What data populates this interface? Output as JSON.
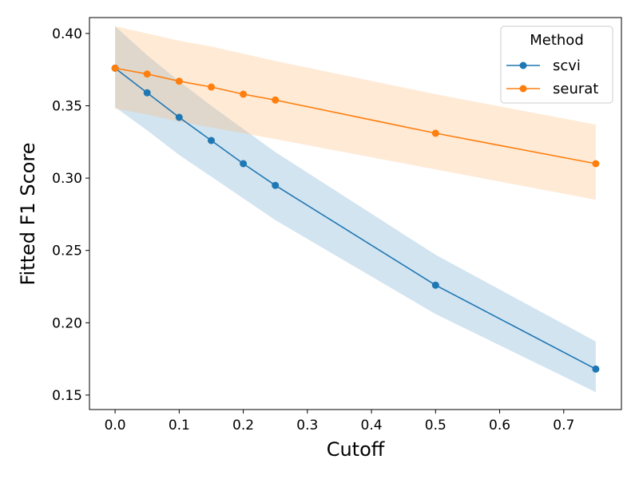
{
  "chart_data": {
    "type": "line",
    "xlabel": "Cutoff",
    "ylabel": "Fitted F1 Score",
    "xlim": [
      -0.04,
      0.79
    ],
    "ylim": [
      0.14,
      0.411
    ],
    "xticks": [
      0.0,
      0.1,
      0.2,
      0.3,
      0.4,
      0.5,
      0.6,
      0.7
    ],
    "xtick_labels": [
      "0.0",
      "0.1",
      "0.2",
      "0.3",
      "0.4",
      "0.5",
      "0.6",
      "0.7"
    ],
    "yticks": [
      0.15,
      0.2,
      0.25,
      0.3,
      0.35,
      0.4
    ],
    "ytick_labels": [
      "0.15",
      "0.20",
      "0.25",
      "0.30",
      "0.35",
      "0.40"
    ],
    "grid": false,
    "legend": {
      "title": "Method",
      "placement": "top-right"
    },
    "x": [
      0.0,
      0.05,
      0.1,
      0.15,
      0.2,
      0.25,
      0.5,
      0.75
    ],
    "series": [
      {
        "name": "scvi",
        "color": "#1f77b4",
        "band_color": "#1f77b4",
        "values": [
          0.376,
          0.359,
          0.342,
          0.326,
          0.31,
          0.295,
          0.226,
          0.168
        ],
        "lower": [
          0.349,
          0.333,
          0.316,
          0.301,
          0.286,
          0.271,
          0.206,
          0.152
        ],
        "upper": [
          0.405,
          0.385,
          0.367,
          0.35,
          0.334,
          0.318,
          0.247,
          0.187
        ]
      },
      {
        "name": "seurat",
        "color": "#ff7f0e",
        "band_color": "#ffbb78",
        "values": [
          0.376,
          0.372,
          0.367,
          0.363,
          0.358,
          0.354,
          0.331,
          0.31
        ],
        "lower": [
          0.348,
          0.344,
          0.339,
          0.335,
          0.331,
          0.327,
          0.306,
          0.285
        ],
        "upper": [
          0.405,
          0.4,
          0.395,
          0.391,
          0.386,
          0.381,
          0.358,
          0.337
        ]
      }
    ]
  }
}
